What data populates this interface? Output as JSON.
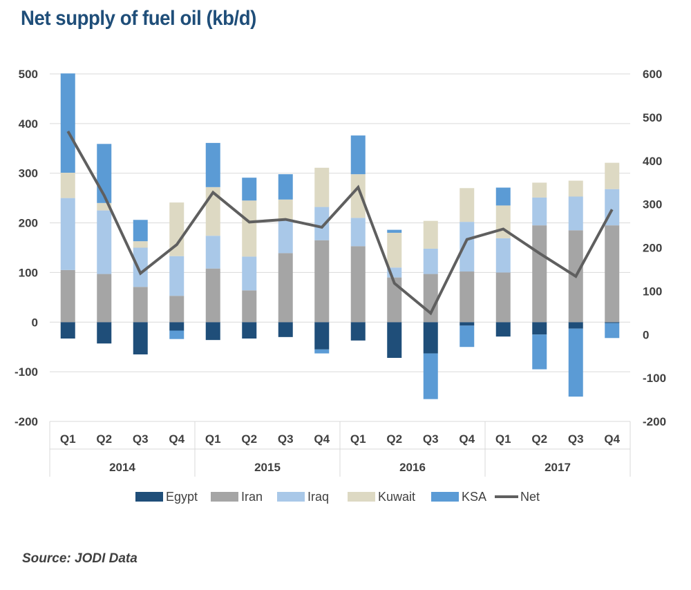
{
  "title": "Net supply of fuel oil (kb/d)",
  "source": "Source: JODI Data",
  "chart_data": {
    "type": "bar",
    "stacked": true,
    "title": "Net supply of fuel oil (kb/d)",
    "quarters": [
      "Q1",
      "Q2",
      "Q3",
      "Q4",
      "Q1",
      "Q2",
      "Q3",
      "Q4",
      "Q1",
      "Q2",
      "Q3",
      "Q4",
      "Q1",
      "Q2",
      "Q3",
      "Q4"
    ],
    "years": [
      "2014",
      "2015",
      "2016",
      "2017"
    ],
    "y_left": {
      "min": -200,
      "max": 500,
      "ticks": [
        500,
        400,
        300,
        200,
        100,
        0,
        -100,
        -200
      ]
    },
    "y_right": {
      "min": -200,
      "max": 600,
      "ticks": [
        600,
        500,
        400,
        300,
        200,
        100,
        0,
        -100,
        -200
      ]
    },
    "grid": true,
    "legend_position": "bottom",
    "series": [
      {
        "name": "Egypt",
        "color": "#1f4e79",
        "axis": "left",
        "values": [
          -33,
          -43,
          -65,
          -17,
          -36,
          -33,
          -30,
          -55,
          -37,
          -72,
          -63,
          -7,
          -29,
          -25,
          -13,
          -2
        ]
      },
      {
        "name": "Iran",
        "color": "#a5a5a5",
        "axis": "left",
        "values": [
          105,
          97,
          71,
          53,
          108,
          64,
          139,
          165,
          153,
          90,
          97,
          102,
          100,
          195,
          185,
          195
        ]
      },
      {
        "name": "Iraq",
        "color": "#a9c8e8",
        "axis": "left",
        "values": [
          145,
          128,
          79,
          80,
          66,
          68,
          68,
          67,
          57,
          20,
          51,
          100,
          69,
          56,
          68,
          73
        ]
      },
      {
        "name": "Kuwait",
        "color": "#ddd9c3",
        "axis": "left",
        "values": [
          51,
          15,
          13,
          108,
          98,
          113,
          40,
          79,
          88,
          70,
          56,
          68,
          66,
          30,
          32,
          53
        ]
      },
      {
        "name": "KSA",
        "color": "#5b9bd5",
        "axis": "left",
        "values": [
          200,
          119,
          43,
          -17,
          89,
          46,
          51,
          -8,
          78,
          6,
          -92,
          -43,
          36,
          -70,
          -137,
          -30
        ]
      },
      {
        "name": "Net",
        "type": "line",
        "color": "#5f5f5f",
        "axis": "right",
        "values": [
          468,
          320,
          141,
          207,
          327,
          259,
          265,
          247,
          339,
          118,
          49,
          219,
          243,
          187,
          134,
          288
        ]
      }
    ]
  }
}
